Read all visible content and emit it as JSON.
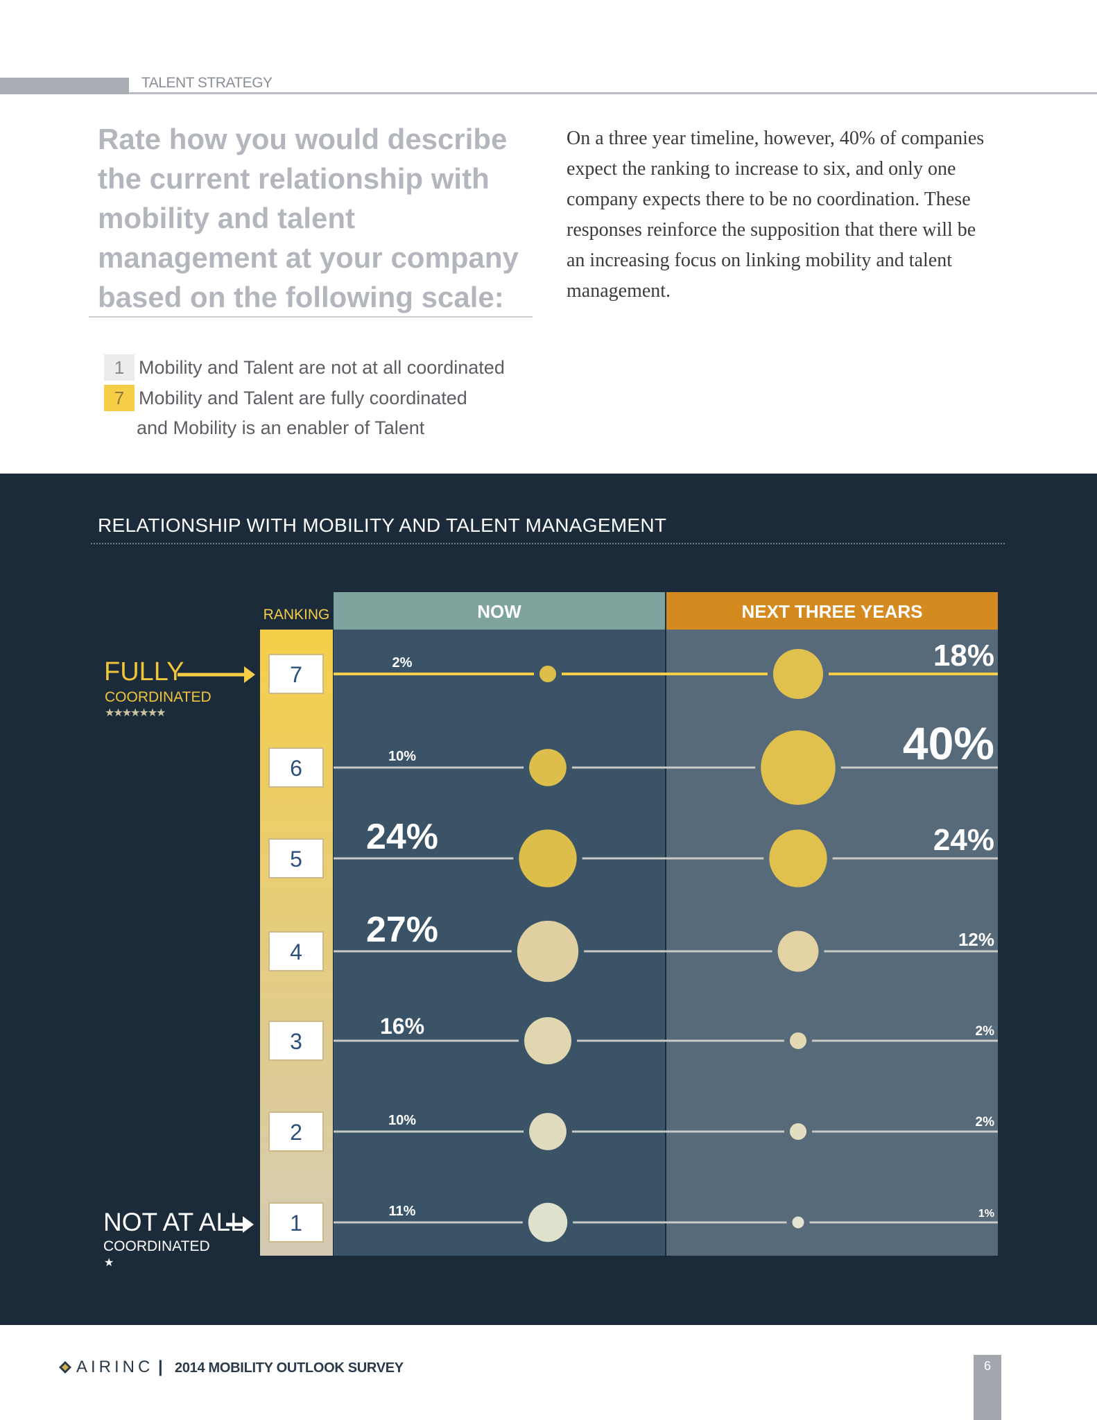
{
  "header": {
    "section": "TALENT STRATEGY"
  },
  "question": "Rate how you would describe the current relationship with mobility and talent management at your company based on the following scale:",
  "body_text": "On a three year timeline, however, 40% of companies expect the ranking to increase to six, and only one company expects there to be no coordination. These responses reinforce the supposition that there will be an increasing focus on linking mobility and talent management.",
  "scale_legend": [
    {
      "num": "1",
      "text": "Mobility and Talent are not at all coordinated"
    },
    {
      "num": "7",
      "text": "Mobility and Talent are fully coordinated",
      "cont": "and Mobility is an enabler of Talent"
    }
  ],
  "colors": {
    "panel": "#1c2b3a",
    "now_header": "#7fa49d",
    "next_header": "#d48a1f",
    "accent": "#f5cd47"
  },
  "chart_data": {
    "type": "bubble",
    "title": "RELATIONSHIP WITH MOBILITY AND TALENT MANAGEMENT",
    "rank_header": "RANKING",
    "rankings": [
      "7",
      "6",
      "5",
      "4",
      "3",
      "2",
      "1"
    ],
    "series": [
      {
        "name": "NOW",
        "labels": [
          "2%",
          "10%",
          "24%",
          "27%",
          "16%",
          "10%",
          "11%"
        ],
        "values": [
          2,
          10,
          24,
          27,
          16,
          10,
          11
        ]
      },
      {
        "name": "NEXT THREE YEARS",
        "labels": [
          "18%",
          "40%",
          "24%",
          "12%",
          "2%",
          "2%",
          "1%"
        ],
        "values": [
          18,
          40,
          24,
          12,
          2,
          2,
          1
        ]
      }
    ],
    "top_label": {
      "main": "FULLY",
      "sub": "COORDINATED",
      "stars": "★★★★★★★"
    },
    "bottom_label": {
      "main": "NOT AT ALL",
      "sub": "COORDINATED",
      "stars": "★"
    }
  },
  "footer": {
    "brand": "AIRINC",
    "separator": "|",
    "title": "2014 MOBILITY OUTLOOK SURVEY",
    "page": "6"
  }
}
